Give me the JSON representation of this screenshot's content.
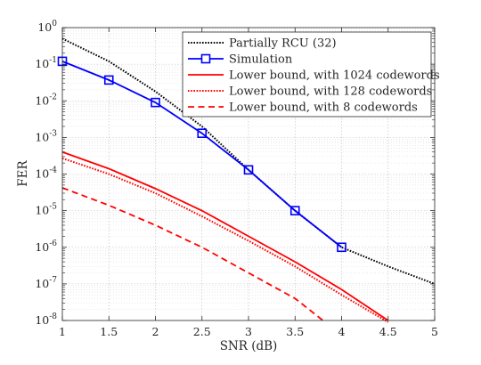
{
  "chart_data": {
    "type": "line",
    "xlabel": "SNR (dB)",
    "ylabel": "FER",
    "xlim": [
      1,
      5
    ],
    "ylim": [
      1e-08,
      1
    ],
    "yscale": "log",
    "grid": true,
    "legend_placement": "top-right",
    "x_ticks": [
      1,
      1.5,
      2,
      2.5,
      3,
      3.5,
      4,
      4.5,
      5
    ],
    "x_tick_labels": [
      "1",
      "1.5",
      "2",
      "2.5",
      "3",
      "3.5",
      "4",
      "4.5",
      "5"
    ],
    "y_ticks": [
      {
        "value": 1e-08,
        "base": "10",
        "exp": "-8"
      },
      {
        "value": 1e-07,
        "base": "10",
        "exp": "-7"
      },
      {
        "value": 1e-06,
        "base": "10",
        "exp": "-6"
      },
      {
        "value": 1e-05,
        "base": "10",
        "exp": "-5"
      },
      {
        "value": 0.0001,
        "base": "10",
        "exp": "-4"
      },
      {
        "value": 0.001,
        "base": "10",
        "exp": "-3"
      },
      {
        "value": 0.01,
        "base": "10",
        "exp": "-2"
      },
      {
        "value": 0.1,
        "base": "10",
        "exp": "-1"
      },
      {
        "value": 1,
        "base": "10",
        "exp": "0"
      }
    ],
    "series": [
      {
        "name": "Partially RCU (32)",
        "color": "#000000",
        "style": "dotted",
        "marker": "none",
        "x": [
          1,
          1.5,
          2,
          2.5,
          3,
          3.5,
          4,
          4.5,
          5
        ],
        "y": [
          0.5,
          0.12,
          0.018,
          0.002,
          0.00013,
          1e-05,
          1e-06,
          3e-07,
          1e-07
        ]
      },
      {
        "name": "Simulation",
        "color": "#0000ff",
        "style": "solid",
        "marker": "square",
        "x": [
          1,
          1.5,
          2,
          2.5,
          3,
          3.5,
          4
        ],
        "y": [
          0.12,
          0.037,
          0.009,
          0.0013,
          0.00013,
          1e-05,
          1e-06
        ]
      },
      {
        "name": "Lower bound, with 1024 codewords",
        "color": "#ff0000",
        "style": "solid",
        "marker": "none",
        "x": [
          1,
          1.5,
          2,
          2.5,
          3,
          3.5,
          4,
          4.5
        ],
        "y": [
          0.0004,
          0.00014,
          4e-05,
          1e-05,
          2e-06,
          4e-07,
          7e-08,
          1e-08
        ]
      },
      {
        "name": "Lower bound, with 128 codewords",
        "color": "#ff0000",
        "style": "dotted",
        "marker": "none",
        "x": [
          1,
          1.5,
          2,
          2.5,
          3,
          3.5,
          4,
          4.5
        ],
        "y": [
          0.00027,
          0.0001,
          3e-05,
          7e-06,
          1.5e-06,
          3e-07,
          5e-08,
          9e-09
        ]
      },
      {
        "name": "Lower bound, with 8 codewords",
        "color": "#ff0000",
        "style": "dashed",
        "marker": "none",
        "x": [
          1,
          1.5,
          2,
          2.5,
          3,
          3.5,
          3.8
        ],
        "y": [
          4.2e-05,
          1.4e-05,
          4e-06,
          1e-06,
          2e-07,
          4e-08,
          1e-08
        ]
      }
    ]
  }
}
